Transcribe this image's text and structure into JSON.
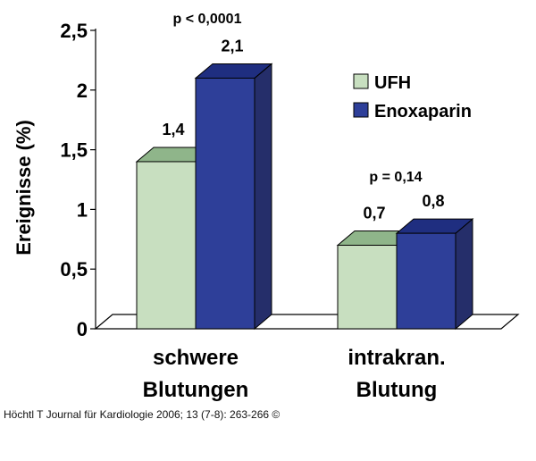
{
  "chart_data": {
    "type": "bar",
    "style": "3d",
    "categories": [
      "schwere Blutungen",
      "intrakran. Blutung"
    ],
    "category_lines": [
      [
        "schwere",
        "Blutungen"
      ],
      [
        "intrakran.",
        "Blutung"
      ]
    ],
    "series": [
      {
        "name": "UFH",
        "values": [
          1.4,
          0.7
        ],
        "labels": [
          "1,4",
          "0,7"
        ],
        "color": "#c8dfc0",
        "top_color": "#8fb58a"
      },
      {
        "name": "Enoxaparin",
        "values": [
          2.1,
          0.8
        ],
        "labels": [
          "2,1",
          "0,8"
        ],
        "color": "#2e3f99",
        "top_color": "#1f2e80",
        "side_color": "#252e6a"
      }
    ],
    "annotations": [
      "p < 0,0001",
      "p = 0,14"
    ],
    "ylabel": "Ereignisse (%)",
    "xlabel": "",
    "ylim": [
      0,
      2.5
    ],
    "yticks": [
      0,
      0.5,
      1,
      1.5,
      2,
      2.5
    ],
    "ytick_labels": [
      "0",
      "0,5",
      "1",
      "1,5",
      "2",
      "2,5"
    ],
    "legend_position": "top-right"
  },
  "caption": "Höchtl T Journal für Kardiologie 2006; 13 (7-8): 263-266 ©"
}
